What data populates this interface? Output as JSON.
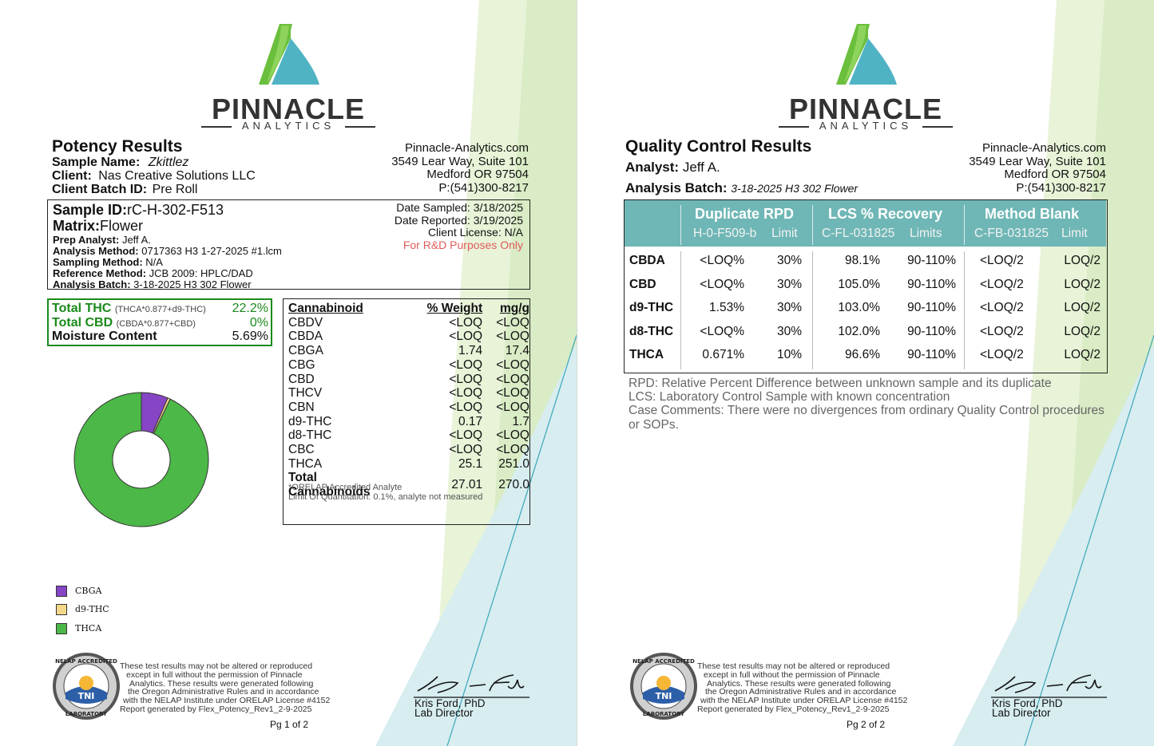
{
  "brand": {
    "name": "PINNACLE",
    "sub": "ANALYTICS"
  },
  "lab": {
    "website": "Pinnacle-Analytics.com",
    "street": "3549 Lear Way, Suite 101",
    "city": "Medford OR 97504",
    "phone": "P:(541)300-8217"
  },
  "colors": {
    "green_brand": "#6abf3c",
    "teal_brand": "#4fb3c4",
    "header_teal": "#6fb7b6",
    "cbga": "#8645c4",
    "d9thc": "#f5d98b",
    "thca": "#4cb847"
  },
  "page1": {
    "title": "Potency Results",
    "sample_name_label": "Sample Name:",
    "sample_name": "Zkittlez",
    "client_label": "Client:",
    "client": "Nas Creative Solutions LLC",
    "client_batch_label": "Client Batch ID:",
    "client_batch": "Pre Roll",
    "sample_id_label": "Sample ID:",
    "sample_id": "rC-H-302-F513",
    "matrix_label": "Matrix:",
    "matrix": "Flower",
    "prep_analyst_label": "Prep Analyst:",
    "prep_analyst": "Jeff A.",
    "analysis_method_label": "Analysis Method:",
    "analysis_method": "0717363 H3 1-27-2025 #1.lcm",
    "sampling_method_label": "Sampling Method:",
    "sampling_method": "N/A",
    "reference_method_label": "Reference Method:",
    "reference_method": "JCB 2009: HPLC/DAD",
    "analysis_batch_label": "Analysis Batch:",
    "analysis_batch": "3-18-2025 H3 302 Flower",
    "date_sampled": "Date Sampled:  3/18/2025",
    "date_reported": "Date Reported: 3/19/2025",
    "client_license": "Client License: N/A",
    "rd_note": "For R&D Purposes Only",
    "totals": [
      {
        "label": "Total THC",
        "formula": "(THCA*0.877+d9-THC)",
        "value": "22.2%"
      },
      {
        "label": "Total CBD",
        "formula": "(CBDA*0.877+CBD)",
        "value": "0%"
      },
      {
        "label": "Moisture Content",
        "formula": "",
        "value": "5.69%"
      }
    ],
    "cannabinoid_headers": [
      "Cannabinoid",
      "% Weight",
      "mg/g"
    ],
    "cannabinoids": [
      [
        "CBDV",
        "<LOQ",
        "<LOQ"
      ],
      [
        "CBDA",
        "<LOQ",
        "<LOQ"
      ],
      [
        "CBGA",
        "1.74",
        "17.4"
      ],
      [
        "CBG",
        "<LOQ",
        "<LOQ"
      ],
      [
        "CBD",
        "<LOQ",
        "<LOQ"
      ],
      [
        "THCV",
        "<LOQ",
        "<LOQ"
      ],
      [
        "CBN",
        "<LOQ",
        "<LOQ"
      ],
      [
        "d9-THC",
        "0.17",
        "1.7"
      ],
      [
        "d8-THC",
        "<LOQ",
        "<LOQ"
      ],
      [
        "CBC",
        "<LOQ",
        "<LOQ"
      ],
      [
        "THCA",
        "25.1",
        "251.0"
      ]
    ],
    "total_row": [
      "Total Cannabinoids",
      "27.01",
      "270.0"
    ],
    "orelap_note": "*ORELAP Accredited Analyte",
    "loq_note": "Limit Of Quantitation: 0.1%, analyte not measured",
    "legend": [
      {
        "label": "CBGA",
        "color": "#8645c4"
      },
      {
        "label": "d9-THC",
        "color": "#f5d98b"
      },
      {
        "label": "THCA",
        "color": "#4cb847"
      }
    ],
    "page_num": "Pg 1 of 2"
  },
  "chart_data": {
    "type": "pie",
    "categories": [
      "CBGA",
      "d9-THC",
      "THCA"
    ],
    "values": [
      1.74,
      0.17,
      25.1
    ],
    "donut": true,
    "legend": "bottom-left"
  },
  "page2": {
    "title": "Quality Control Results",
    "analyst_label": "Analyst:",
    "analyst": "Jeff A.",
    "batch_label": "Analysis Batch:",
    "batch": "3-18-2025 H3 302 Flower",
    "groups": [
      {
        "title": "Duplicate RPD",
        "sub1": "H-0-F509-b",
        "sub2": "Limit"
      },
      {
        "title": "LCS % Recovery",
        "sub1": "C-FL-031825",
        "sub2": "Limits"
      },
      {
        "title": "Method Blank",
        "sub1": "C-FB-031825",
        "sub2": "Limit"
      }
    ],
    "rows": [
      [
        "CBDA",
        "<LOQ%",
        "30%",
        "98.1%",
        "90-110%",
        "<LOQ/2",
        "LOQ/2"
      ],
      [
        "CBD",
        "<LOQ%",
        "30%",
        "105.0%",
        "90-110%",
        "<LOQ/2",
        "LOQ/2"
      ],
      [
        "d9-THC",
        "1.53%",
        "30%",
        "103.0%",
        "90-110%",
        "<LOQ/2",
        "LOQ/2"
      ],
      [
        "d8-THC",
        "<LOQ%",
        "30%",
        "102.0%",
        "90-110%",
        "<LOQ/2",
        "LOQ/2"
      ],
      [
        "THCA",
        "0.671%",
        "10%",
        "96.6%",
        "90-110%",
        "<LOQ/2",
        "LOQ/2"
      ]
    ],
    "notes": [
      "RPD: Relative Percent Difference between unknown sample and its duplicate",
      "LCS: Laboratory Control Sample with known concentration",
      "Case Comments: There were no divergences from ordinary Quality Control procedures or SOPs."
    ],
    "page_num": "Pg 2 of 2"
  },
  "footer": {
    "disclaimer": [
      "These test results may not be altered or reproduced",
      "except in full without the permission of Pinnacle",
      "Analytics. These results were generated following",
      "the Oregon Administrative Rules and in accordance",
      "with the NELAP Institute under ORELAP License #4152",
      "Report generated by Flex_Potency_Rev1_2-9-2025"
    ],
    "seal_top": "NELAP ACCREDITED",
    "seal_bottom": "LABORATORY",
    "seal_center": "TNI",
    "signer": "Kris Ford, PhD",
    "signer_title": "Lab Director"
  }
}
